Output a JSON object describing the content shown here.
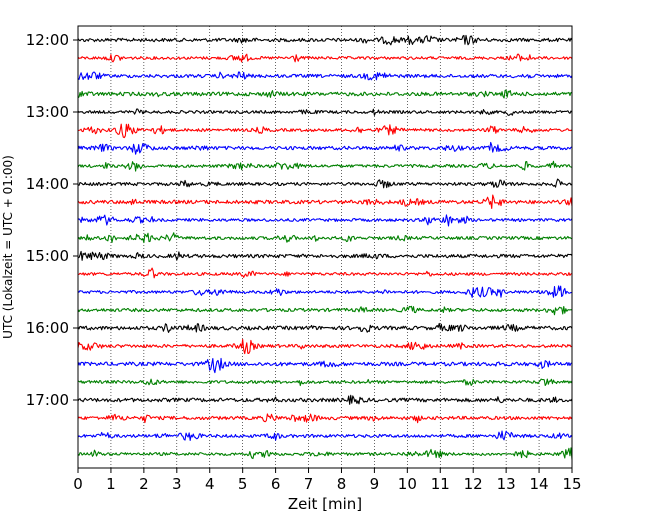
{
  "chart_data": {
    "type": "line",
    "title": "",
    "xlabel": "Zeit  [min]",
    "ylabel": "UTC (Lokalzeit = UTC + 01:00)",
    "xlim": [
      0,
      15
    ],
    "x_ticks": [
      0,
      1,
      2,
      3,
      4,
      5,
      6,
      7,
      8,
      9,
      10,
      11,
      12,
      13,
      14,
      15
    ],
    "x_tick_labels": [
      "0",
      "1",
      "2",
      "3",
      "4",
      "5",
      "6",
      "7",
      "8",
      "9",
      "10",
      "11",
      "12",
      "13",
      "14",
      "15"
    ],
    "y_ticks": [
      "12:00",
      "13:00",
      "14:00",
      "15:00",
      "16:00",
      "17:00"
    ],
    "grid": {
      "vertical_dotted": true
    },
    "trace_colors": [
      "#000000",
      "#ff0000",
      "#0000ff",
      "#008000"
    ],
    "traces": [
      {
        "start_utc": "12:00"
      },
      {
        "start_utc": "12:15"
      },
      {
        "start_utc": "12:30"
      },
      {
        "start_utc": "12:45"
      },
      {
        "start_utc": "13:00"
      },
      {
        "start_utc": "13:15"
      },
      {
        "start_utc": "13:30"
      },
      {
        "start_utc": "13:45"
      },
      {
        "start_utc": "14:00"
      },
      {
        "start_utc": "14:15"
      },
      {
        "start_utc": "14:30"
      },
      {
        "start_utc": "14:45"
      },
      {
        "start_utc": "15:00"
      },
      {
        "start_utc": "15:15"
      },
      {
        "start_utc": "15:30"
      },
      {
        "start_utc": "15:45"
      },
      {
        "start_utc": "16:00"
      },
      {
        "start_utc": "16:15"
      },
      {
        "start_utc": "16:30"
      },
      {
        "start_utc": "16:45"
      },
      {
        "start_utc": "17:00"
      },
      {
        "start_utc": "17:15"
      },
      {
        "start_utc": "17:30"
      },
      {
        "start_utc": "17:45"
      }
    ]
  }
}
